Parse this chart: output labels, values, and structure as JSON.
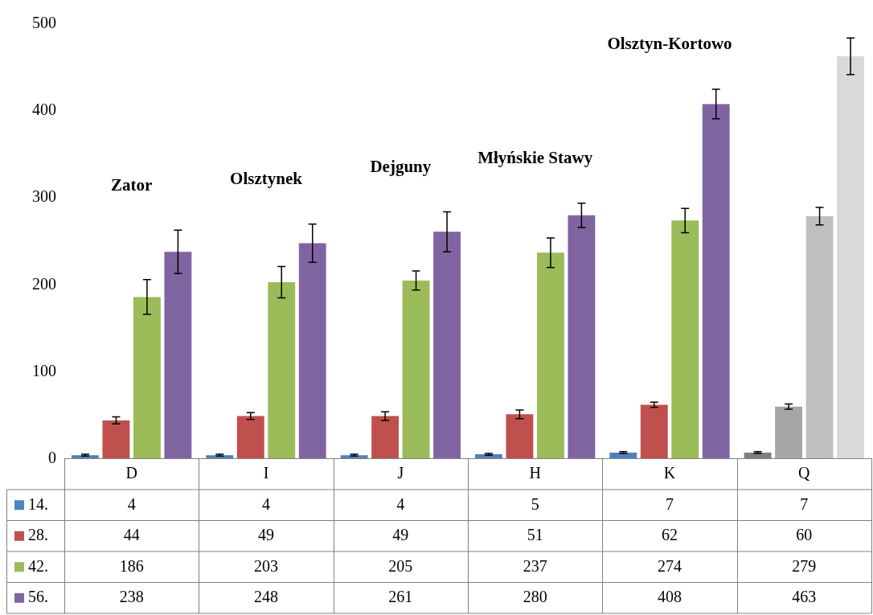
{
  "chart_data": {
    "type": "bar",
    "categories": [
      "D",
      "I",
      "J",
      "H",
      "K",
      "Q"
    ],
    "series": [
      {
        "name": "14.",
        "color": "#4f81bd",
        "colors": [
          "#4f81bd",
          "#4f81bd",
          "#4f81bd",
          "#4f81bd",
          "#4f81bd",
          "#7f7f7f"
        ],
        "values": [
          4,
          4,
          4,
          5,
          7,
          7
        ],
        "errors": [
          1,
          1,
          1,
          1,
          1,
          1
        ]
      },
      {
        "name": "28.",
        "color": "#c0504d",
        "colors": [
          "#c0504d",
          "#c0504d",
          "#c0504d",
          "#c0504d",
          "#c0504d",
          "#a6a6a6"
        ],
        "values": [
          44,
          49,
          49,
          51,
          62,
          60
        ],
        "errors": [
          4,
          4,
          5,
          5,
          3,
          3
        ]
      },
      {
        "name": "42.",
        "color": "#9bbb59",
        "colors": [
          "#9bbb59",
          "#9bbb59",
          "#9bbb59",
          "#9bbb59",
          "#9bbb59",
          "#bfbfbf"
        ],
        "values": [
          186,
          203,
          205,
          237,
          274,
          279
        ],
        "errors": [
          20,
          18,
          11,
          17,
          14,
          10
        ]
      },
      {
        "name": "56.",
        "color": "#8064a2",
        "colors": [
          "#8064a2",
          "#8064a2",
          "#8064a2",
          "#8064a2",
          "#8064a2",
          "#d9d9d9"
        ],
        "values": [
          238,
          248,
          261,
          280,
          408,
          463
        ],
        "errors": [
          25,
          22,
          23,
          14,
          17,
          21
        ]
      }
    ],
    "ylim": [
      0,
      500
    ],
    "yticks": [
      0,
      100,
      200,
      300,
      400,
      500
    ],
    "grid": false,
    "legend": "bottom",
    "data_labels": true,
    "annotations": [
      "Zator",
      "Olsztynek",
      "Dejguny",
      "Młyńskie Stawy",
      "Olsztyn-Kortowo"
    ]
  }
}
